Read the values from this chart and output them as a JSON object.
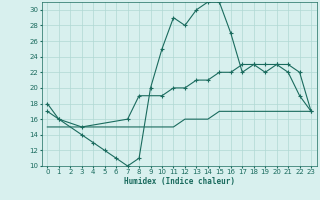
{
  "xlabel": "Humidex (Indice chaleur)",
  "xlim": [
    -0.5,
    23.5
  ],
  "ylim": [
    10,
    31
  ],
  "xticks": [
    0,
    1,
    2,
    3,
    4,
    5,
    6,
    7,
    8,
    9,
    10,
    11,
    12,
    13,
    14,
    15,
    16,
    17,
    18,
    19,
    20,
    21,
    22,
    23
  ],
  "yticks": [
    10,
    12,
    14,
    16,
    18,
    20,
    22,
    24,
    26,
    28,
    30
  ],
  "bg_color": "#d8f0ee",
  "line_color": "#1a6b5e",
  "grid_color": "#b0d8d4",
  "line1_x": [
    0,
    1,
    3,
    4,
    5,
    6,
    7,
    8,
    9,
    10,
    11,
    12,
    13,
    14,
    15,
    16,
    17,
    18,
    19,
    20,
    21,
    22,
    23
  ],
  "line1_y": [
    18,
    16,
    14,
    13,
    12,
    11,
    10,
    11,
    20,
    25,
    29,
    28,
    30,
    31,
    31,
    27,
    22,
    23,
    22,
    23,
    22,
    19,
    17
  ],
  "line2_x": [
    0,
    1,
    3,
    7,
    8,
    10,
    11,
    12,
    13,
    14,
    15,
    16,
    17,
    18,
    19,
    20,
    21,
    22,
    23
  ],
  "line2_y": [
    17,
    16,
    15,
    16,
    19,
    19,
    20,
    20,
    21,
    21,
    22,
    22,
    23,
    23,
    23,
    23,
    23,
    22,
    17
  ],
  "line3_x": [
    0,
    1,
    3,
    10,
    11,
    12,
    13,
    14,
    15,
    16,
    17,
    18,
    19,
    20,
    21,
    22,
    23
  ],
  "line3_y": [
    15,
    15,
    15,
    15,
    15,
    16,
    16,
    16,
    17,
    17,
    17,
    17,
    17,
    17,
    17,
    17,
    17
  ]
}
